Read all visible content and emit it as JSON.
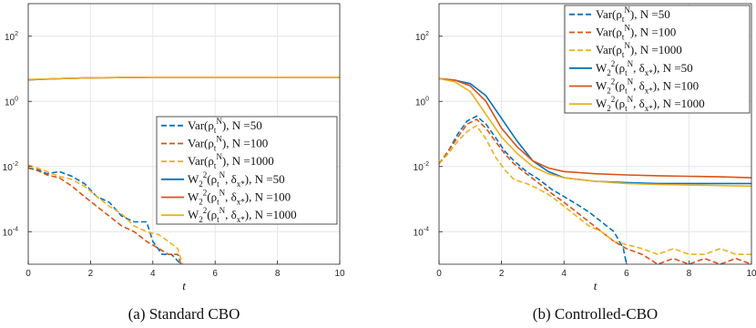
{
  "chart_data": [
    {
      "type": "line",
      "caption": "(a) Standard CBO",
      "xlabel": "t",
      "ylabel": "",
      "xlim": [
        0,
        10
      ],
      "ylim": [
        1e-05,
        1000
      ],
      "yscale": "log",
      "xticks": [
        "0",
        "2",
        "4",
        "6",
        "8",
        "10"
      ],
      "yticks": [
        {
          "base": "10",
          "exp": "-4",
          "value": 0.0001
        },
        {
          "base": "10",
          "exp": "-2",
          "value": 0.01
        },
        {
          "base": "10",
          "exp": "0",
          "value": 1
        },
        {
          "base": "10",
          "exp": "2",
          "value": 100
        }
      ],
      "grid": true,
      "legend_position": "right",
      "series": [
        {
          "name": "Var(ρ_t^N), N =50",
          "color": "#0072BD",
          "dash": true,
          "x": [
            0,
            0.3,
            0.6,
            1.0,
            1.4,
            1.8,
            2.2,
            2.6,
            3.0,
            3.4,
            3.8,
            4.0,
            4.3,
            4.6,
            4.9
          ],
          "y": [
            0.009,
            0.008,
            0.006,
            0.007,
            0.005,
            0.003,
            0.0012,
            0.0008,
            0.0003,
            0.0002,
            0.0002,
            5e-05,
            2e-05,
            2e-05,
            1e-05
          ]
        },
        {
          "name": "Var(ρ_t^N), N =100",
          "color": "#D95319",
          "dash": true,
          "x": [
            0,
            0.3,
            0.6,
            1.0,
            1.4,
            1.8,
            2.2,
            2.6,
            3.0,
            3.4,
            3.8,
            4.2,
            4.5,
            4.8,
            4.9
          ],
          "y": [
            0.009,
            0.0075,
            0.0055,
            0.0045,
            0.0025,
            0.0012,
            0.0006,
            0.0003,
            0.00015,
            0.0001,
            5e-05,
            3e-05,
            2e-05,
            2e-05,
            1e-05
          ]
        },
        {
          "name": "Var(ρ_t^N), N =1000",
          "color": "#EDB120",
          "dash": true,
          "x": [
            0,
            0.3,
            0.6,
            1.0,
            1.4,
            1.8,
            2.2,
            2.6,
            3.0,
            3.4,
            3.8,
            4.2,
            4.5,
            4.8,
            4.95
          ],
          "y": [
            0.011,
            0.009,
            0.007,
            0.005,
            0.004,
            0.0025,
            0.0012,
            0.0006,
            0.00035,
            0.00015,
            0.0001,
            8e-05,
            5e-05,
            3e-05,
            1e-05
          ]
        },
        {
          "name": "W_2^2(ρ_t^N, δ_{x*}), N =50",
          "color": "#0072BD",
          "dash": false,
          "x": [
            0,
            1,
            2,
            3,
            4,
            5,
            6,
            7,
            8,
            9,
            10
          ],
          "y": [
            4.6,
            5.0,
            5.3,
            5.4,
            5.5,
            5.5,
            5.5,
            5.5,
            5.5,
            5.5,
            5.5
          ]
        },
        {
          "name": "W_2^2(ρ_t^N, δ_{x*}), N =100",
          "color": "#D95319",
          "dash": false,
          "x": [
            0,
            1,
            2,
            3,
            4,
            5,
            6,
            7,
            8,
            9,
            10
          ],
          "y": [
            4.6,
            5.0,
            5.3,
            5.4,
            5.5,
            5.5,
            5.5,
            5.5,
            5.5,
            5.5,
            5.5
          ]
        },
        {
          "name": "W_2^2(ρ_t^N, δ_{x*}), N =1000",
          "color": "#EDB120",
          "dash": false,
          "x": [
            0,
            1,
            2,
            3,
            4,
            5,
            6,
            7,
            8,
            9,
            10
          ],
          "y": [
            4.7,
            5.0,
            5.3,
            5.4,
            5.5,
            5.5,
            5.5,
            5.5,
            5.5,
            5.5,
            5.5
          ]
        }
      ]
    },
    {
      "type": "line",
      "caption": "(b) Controlled-CBO",
      "xlabel": "t",
      "ylabel": "",
      "xlim": [
        0,
        10
      ],
      "ylim": [
        1e-05,
        1000
      ],
      "yscale": "log",
      "xticks": [
        "0",
        "2",
        "4",
        "6",
        "8",
        "10"
      ],
      "yticks": [
        {
          "base": "10",
          "exp": "-4",
          "value": 0.0001
        },
        {
          "base": "10",
          "exp": "-2",
          "value": 0.01
        },
        {
          "base": "10",
          "exp": "0",
          "value": 1
        },
        {
          "base": "10",
          "exp": "2",
          "value": 100
        }
      ],
      "grid": true,
      "legend_position": "top-right",
      "series": [
        {
          "name": "Var(ρ_t^N), N =50",
          "color": "#0072BD",
          "dash": true,
          "x": [
            0,
            0.3,
            0.6,
            0.9,
            1.2,
            1.5,
            1.8,
            2.1,
            2.4,
            2.8,
            3.2,
            3.6,
            4.0,
            4.4,
            4.8,
            5.2,
            5.6,
            5.9,
            6.0
          ],
          "y": [
            0.012,
            0.03,
            0.1,
            0.25,
            0.35,
            0.2,
            0.08,
            0.03,
            0.015,
            0.007,
            0.004,
            0.002,
            0.0012,
            0.0007,
            0.0004,
            0.0002,
            0.0001,
            3e-05,
            1e-05
          ]
        },
        {
          "name": "Var(ρ_t^N), N =100",
          "color": "#D95319",
          "dash": true,
          "x": [
            0,
            0.3,
            0.6,
            0.9,
            1.2,
            1.5,
            1.8,
            2.1,
            2.4,
            2.8,
            3.2,
            3.6,
            4.0,
            4.4,
            4.8,
            5.2,
            5.6,
            6.0,
            6.5,
            7.0,
            7.5,
            8.0,
            8.5,
            9.0,
            9.5,
            10.0
          ],
          "y": [
            0.012,
            0.03,
            0.08,
            0.2,
            0.28,
            0.15,
            0.06,
            0.025,
            0.012,
            0.006,
            0.003,
            0.0015,
            0.0008,
            0.0004,
            0.0002,
            0.0001,
            5e-05,
            3e-05,
            2e-05,
            1e-05,
            1.5e-05,
            1e-05,
            1.5e-05,
            1e-05,
            1.5e-05,
            1e-05
          ]
        },
        {
          "name": "Var(ρ_t^N), N =1000",
          "color": "#EDB120",
          "dash": true,
          "x": [
            0,
            0.3,
            0.6,
            0.9,
            1.2,
            1.5,
            1.8,
            2.1,
            2.4,
            2.8,
            3.2,
            3.6,
            4.0,
            4.4,
            4.8,
            5.2,
            5.6,
            6.0,
            6.5,
            7.0,
            7.5,
            8.0,
            8.5,
            9.0,
            9.5,
            10.0
          ],
          "y": [
            0.012,
            0.025,
            0.06,
            0.12,
            0.18,
            0.07,
            0.02,
            0.008,
            0.004,
            0.003,
            0.002,
            0.0012,
            0.0006,
            0.0003,
            0.00015,
            0.0001,
            5e-05,
            4e-05,
            3e-05,
            2e-05,
            3e-05,
            2e-05,
            2e-05,
            3e-05,
            2e-05,
            2e-05
          ]
        },
        {
          "name": "W_2^2(ρ_t^N, δ_{x*}), N =50",
          "color": "#0072BD",
          "dash": false,
          "x": [
            0,
            0.5,
            1.0,
            1.5,
            2.0,
            2.5,
            3.0,
            3.5,
            4.0,
            5.0,
            6.0,
            7.0,
            8.0,
            9.0,
            10.0
          ],
          "y": [
            5,
            4.5,
            3.5,
            1.5,
            0.3,
            0.06,
            0.015,
            0.007,
            0.0045,
            0.0035,
            0.0032,
            0.003,
            0.003,
            0.003,
            0.003
          ]
        },
        {
          "name": "W_2^2(ρ_t^N, δ_{x*}), N =100",
          "color": "#D95319",
          "dash": false,
          "x": [
            0,
            0.5,
            1.0,
            1.5,
            2.0,
            2.5,
            3.0,
            3.5,
            4.0,
            5.0,
            6.0,
            7.0,
            8.0,
            9.0,
            10.0
          ],
          "y": [
            5,
            4.5,
            3.0,
            1.0,
            0.15,
            0.04,
            0.015,
            0.009,
            0.007,
            0.006,
            0.0055,
            0.0052,
            0.005,
            0.0048,
            0.0045
          ]
        },
        {
          "name": "W_2^2(ρ_t^N, δ_{x*}), N =1000",
          "color": "#EDB120",
          "dash": false,
          "x": [
            0,
            0.5,
            1.0,
            1.5,
            2.0,
            2.5,
            3.0,
            3.5,
            4.0,
            5.0,
            6.0,
            7.0,
            8.0,
            9.0,
            10.0
          ],
          "y": [
            5,
            4.0,
            2.0,
            0.4,
            0.08,
            0.025,
            0.01,
            0.006,
            0.0045,
            0.0035,
            0.003,
            0.0028,
            0.0027,
            0.0026,
            0.0025
          ]
        }
      ]
    }
  ]
}
